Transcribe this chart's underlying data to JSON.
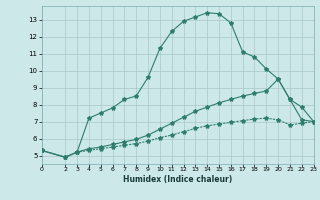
{
  "background_color": "#cce8e8",
  "grid_color": "#aac8c8",
  "line_color": "#2e7d6e",
  "xlabel": "Humidex (Indice chaleur)",
  "ylim": [
    4.5,
    13.8
  ],
  "xlim": [
    0,
    23
  ],
  "yticks": [
    5,
    6,
    7,
    8,
    9,
    10,
    11,
    12,
    13
  ],
  "xticks": [
    0,
    2,
    3,
    4,
    5,
    6,
    7,
    8,
    9,
    10,
    11,
    12,
    13,
    14,
    15,
    16,
    17,
    18,
    19,
    20,
    21,
    22,
    23
  ],
  "curve1_x": [
    0,
    2,
    3,
    4,
    5,
    6,
    7,
    8,
    9,
    10,
    11,
    12,
    13,
    14,
    15,
    16,
    17,
    18,
    19,
    20,
    21,
    22,
    23
  ],
  "curve1_y": [
    5.3,
    4.9,
    5.2,
    7.2,
    7.5,
    7.8,
    8.3,
    8.5,
    9.6,
    11.3,
    12.3,
    12.9,
    13.15,
    13.4,
    13.35,
    12.8,
    11.1,
    10.8,
    10.1,
    9.5,
    8.3,
    7.1,
    7.0
  ],
  "curve2_x": [
    0,
    2,
    3,
    4,
    5,
    6,
    7,
    8,
    9,
    10,
    11,
    12,
    13,
    14,
    15,
    16,
    17,
    18,
    19,
    20,
    21,
    22,
    23
  ],
  "curve2_y": [
    5.3,
    4.9,
    5.2,
    5.4,
    5.5,
    5.65,
    5.8,
    5.95,
    6.2,
    6.55,
    6.9,
    7.25,
    7.6,
    7.85,
    8.1,
    8.3,
    8.5,
    8.65,
    8.8,
    9.5,
    8.3,
    7.85,
    7.0
  ],
  "curve3_x": [
    0,
    2,
    3,
    4,
    5,
    6,
    7,
    8,
    9,
    10,
    11,
    12,
    13,
    14,
    15,
    16,
    17,
    18,
    19,
    20,
    21,
    22,
    23
  ],
  "curve3_y": [
    5.3,
    4.9,
    5.2,
    5.3,
    5.4,
    5.5,
    5.6,
    5.7,
    5.85,
    6.05,
    6.2,
    6.4,
    6.6,
    6.75,
    6.85,
    6.95,
    7.05,
    7.15,
    7.2,
    7.1,
    6.8,
    6.9,
    7.0
  ]
}
